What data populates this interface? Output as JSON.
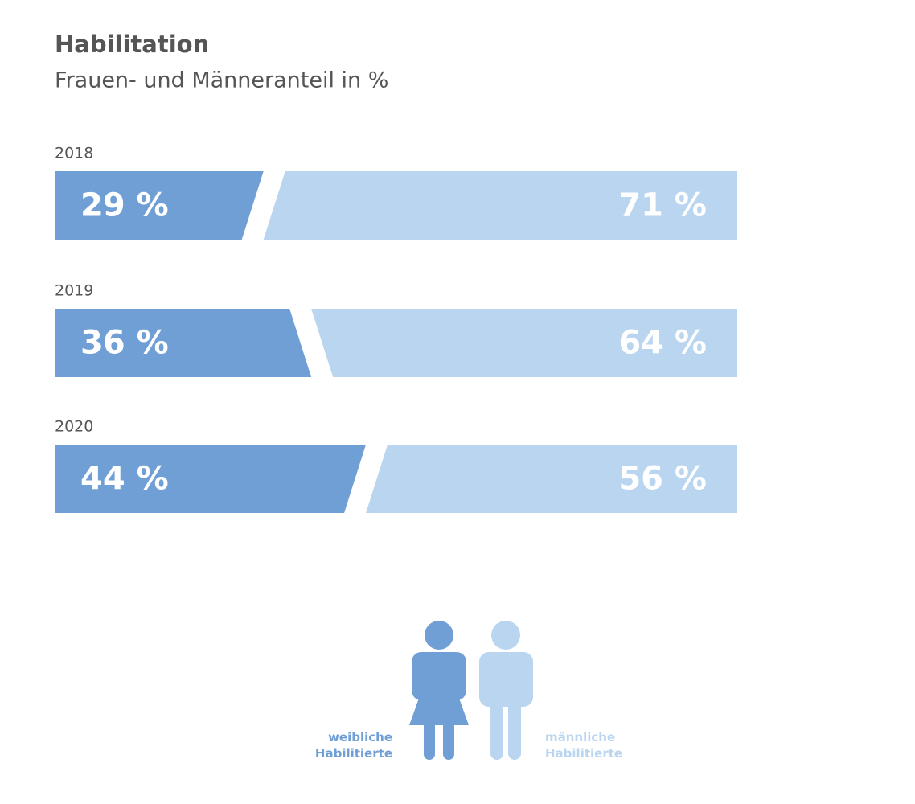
{
  "chart_data": {
    "type": "split-bar",
    "title": "Habilitation",
    "subtitle": "Frauen- und Männeranteil in %",
    "categories": [
      "2018",
      "2019",
      "2020"
    ],
    "xlim": [
      0,
      100
    ],
    "series": [
      {
        "name": "weibliche Habilitierte",
        "color": "#6f9fd4",
        "values": [
          29,
          36,
          44
        ],
        "value_labels": [
          "29 %",
          "36 %",
          "44 %"
        ]
      },
      {
        "name": "männliche Habilitierte",
        "color": "#b9d5f0",
        "values": [
          71,
          64,
          56
        ],
        "value_labels": [
          "71 %",
          "64 %",
          "56 %"
        ]
      }
    ]
  }
}
